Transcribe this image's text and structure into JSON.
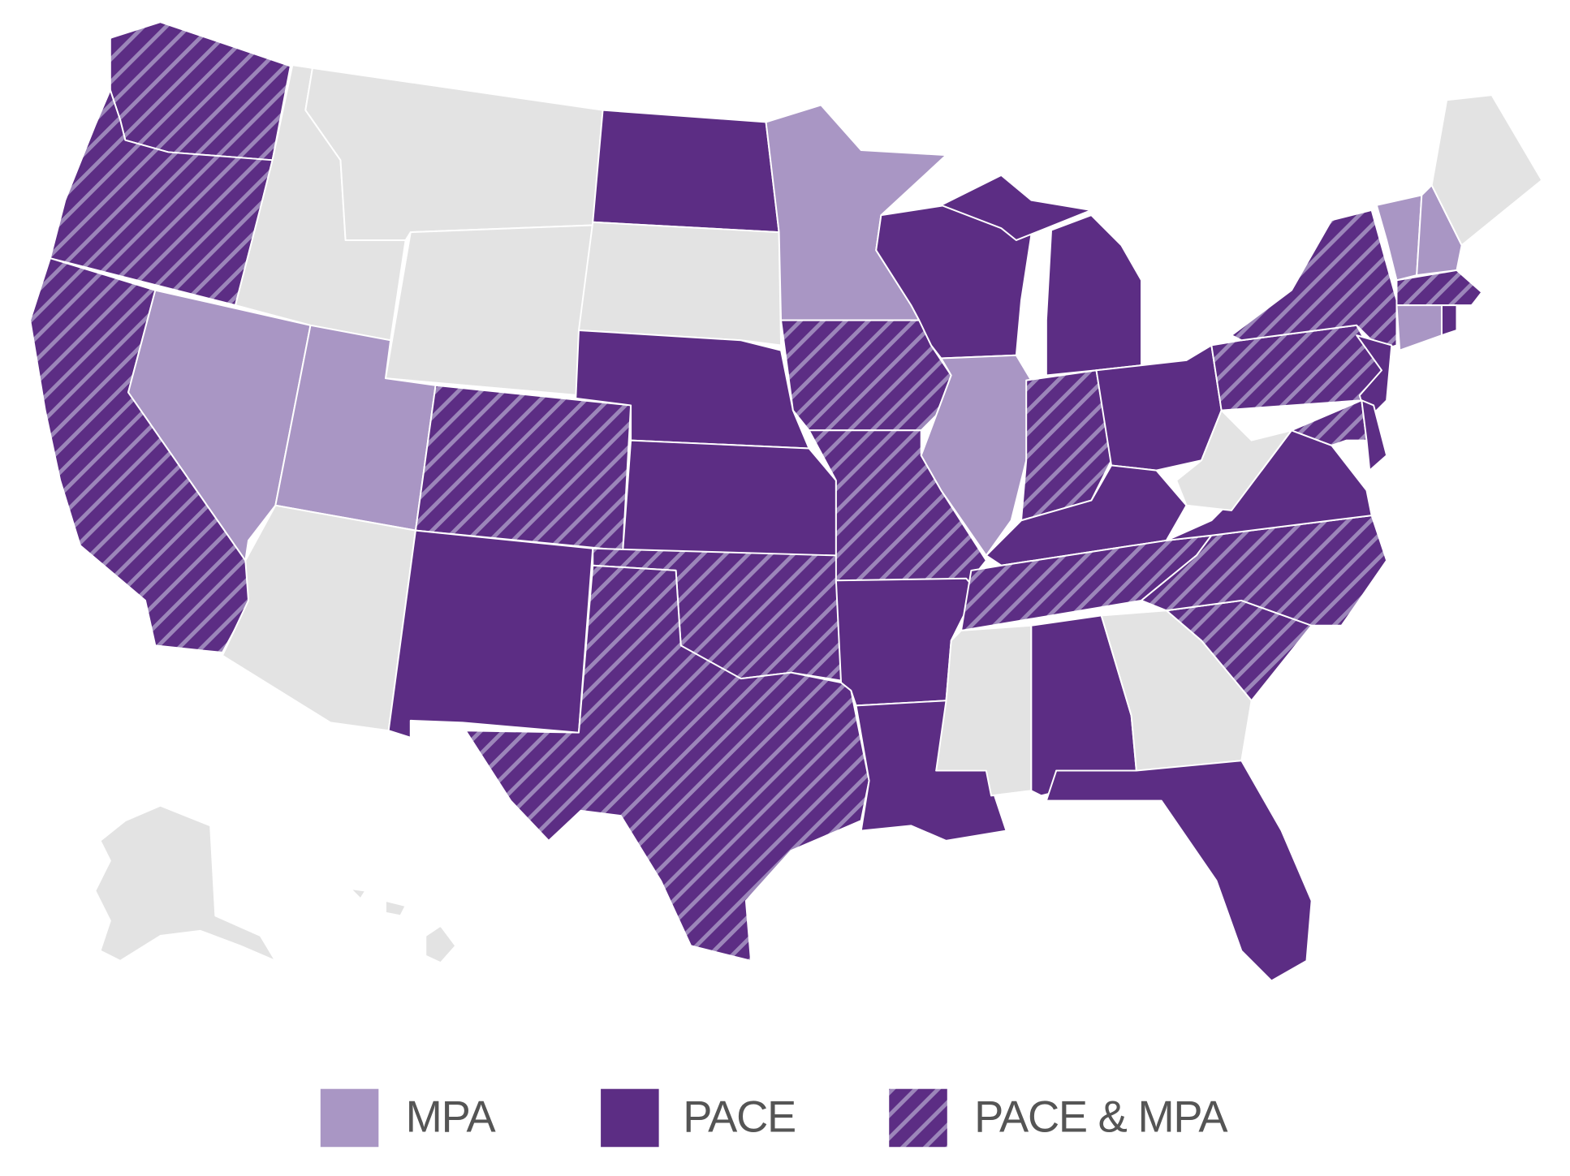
{
  "legend": {
    "items": [
      {
        "label": "MPA",
        "color": "#a996c4"
      },
      {
        "label": "PACE",
        "color": "#5c2d84"
      },
      {
        "label": "PACE & MPA",
        "color": "#5c2d84",
        "pattern": "diagonal-stripes",
        "stripe_color": "#9c86ba"
      }
    ]
  }
}
